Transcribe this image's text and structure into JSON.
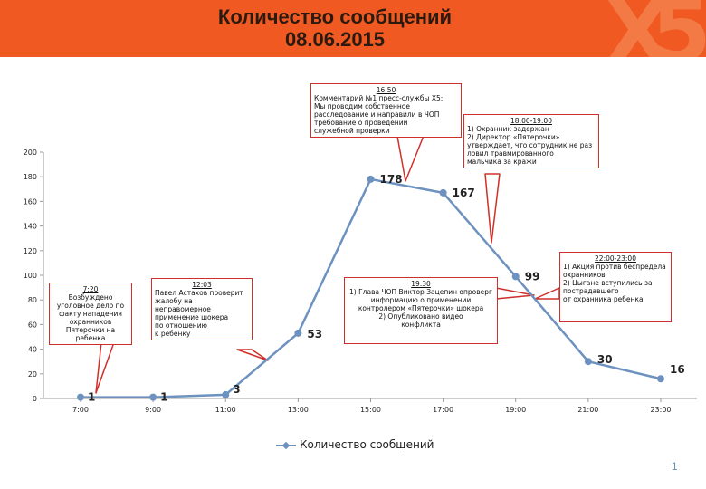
{
  "header": {
    "title_line1": "Количество сообщений",
    "title_line2": "08.06.2015",
    "logo_text_x": "X",
    "logo_text_5": "5"
  },
  "colors": {
    "header_bg": "#f05a22",
    "series": "#6d92bf",
    "callout_border": "#d0302a"
  },
  "chart_data": {
    "type": "line",
    "x": [
      "7:00",
      "9:00",
      "11:00",
      "13:00",
      "15:00",
      "17:00",
      "19:00",
      "21:00",
      "23:00"
    ],
    "series": [
      {
        "name": "Количество сообщений",
        "points": [
          {
            "x": "7:00",
            "y": 1,
            "label": "1"
          },
          {
            "x": "9:00",
            "y": 1,
            "label": "1"
          },
          {
            "x": "11:00",
            "y": 3,
            "label": "3"
          },
          {
            "x": "13:00",
            "y": 53,
            "label": "53"
          },
          {
            "x": "15:00",
            "y": 178,
            "label": "178"
          },
          {
            "x": "17:00",
            "y": 167,
            "label": "167"
          },
          {
            "x": "19:00",
            "y": 99,
            "label": "99"
          },
          {
            "x": "21:00",
            "y": 30,
            "label": "30"
          },
          {
            "x": "23:00",
            "y": 16,
            "label": "16"
          }
        ]
      }
    ],
    "yticks": [
      0,
      20,
      40,
      60,
      80,
      100,
      120,
      140,
      160,
      180,
      200
    ],
    "ylim": [
      0,
      200
    ],
    "grid": false,
    "legend_position": "bottom"
  },
  "annotations": [
    {
      "id": "a1",
      "time": "7:20",
      "text": "Возбуждено\nуголовное дело по\nфакту нападения\nохранников\nПятерочки на\nребенка"
    },
    {
      "id": "a2",
      "time": "12:03",
      "text": "Павел Астахов проверит\nжалобу на\nнеправомерное\nприменение шокера\nпо отношению\nк ребенку"
    },
    {
      "id": "a3",
      "time": "16:50",
      "text": "Комментарий №1 пресс-службы Х5:\nМы проводим собственное\nрасследование и направили в ЧОП\nтребование о проведении\nслужебной проверки"
    },
    {
      "id": "a4",
      "time": "18:00-19:00",
      "text": "1) Охранник задержан\n2) Директор «Пятерочки»\nутверждает, что сотрудник не раз\nловил травмированного\nмальчика за кражи"
    },
    {
      "id": "a5",
      "time": "19:30",
      "text": "1) Глава ЧОП Виктор Зацепин опроверг\nинформацию о применении\nконтролером «Пятерочки» шокера\n2) Опубликовано видео\nконфликта"
    },
    {
      "id": "a6",
      "time": "22:00-23:00",
      "text": "1) Акция против беспредела\nохранников\n2) Цыгане вступились за\nпострадавшего\nот охранника ребенка"
    }
  ],
  "legend": {
    "label": "Количество сообщений"
  },
  "page_number": "1"
}
